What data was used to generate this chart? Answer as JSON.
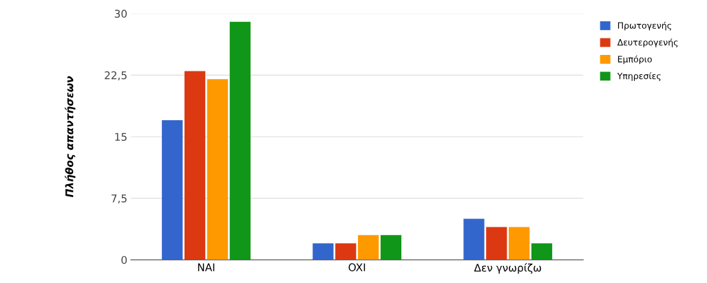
{
  "chart_data": {
    "type": "bar",
    "ylabel": "Πλήθος απαντήσεων",
    "categories": [
      "NAI",
      "OXI",
      "Δεν γνωρίζω"
    ],
    "series": [
      {
        "name": "Πρωτογενής",
        "color": "#3366cc",
        "values": [
          17,
          2,
          5
        ]
      },
      {
        "name": "Δευτερογενής",
        "color": "#dc3912",
        "values": [
          23,
          2,
          4
        ]
      },
      {
        "name": "Εμπόριο",
        "color": "#ff9900",
        "values": [
          22,
          3,
          4
        ]
      },
      {
        "name": "Υπηρεσίες",
        "color": "#109618",
        "values": [
          29,
          3,
          2
        ]
      }
    ],
    "ylim": [
      0,
      30
    ],
    "yticks": [
      0,
      {
        "value": 7.5,
        "label": "7,5"
      },
      15,
      {
        "value": 22.5,
        "label": "22,5"
      },
      30
    ],
    "grid": "y",
    "legend": "top right"
  }
}
